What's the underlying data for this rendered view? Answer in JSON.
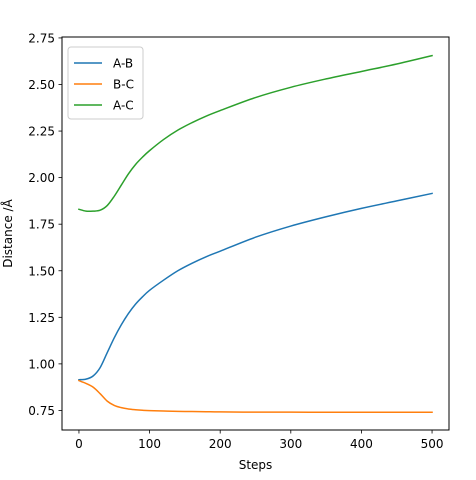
{
  "chart_data": {
    "type": "line",
    "title": "",
    "xlabel": "Steps",
    "ylabel": "Distance /Å",
    "xlim": [
      -24,
      524
    ],
    "ylim": [
      0.645,
      2.755
    ],
    "xticks": [
      0,
      100,
      200,
      300,
      400,
      500
    ],
    "xtick_labels": [
      "0",
      "100",
      "200",
      "300",
      "400",
      "500"
    ],
    "yticks": [
      0.75,
      1.0,
      1.25,
      1.5,
      1.75,
      2.0,
      2.25,
      2.5,
      2.75
    ],
    "ytick_labels": [
      "0.75",
      "1.00",
      "1.25",
      "1.50",
      "1.75",
      "2.00",
      "2.25",
      "2.50",
      "2.75"
    ],
    "grid": false,
    "legend": "top-left",
    "x": [
      0,
      10,
      20,
      30,
      40,
      50,
      60,
      70,
      80,
      90,
      100,
      120,
      140,
      160,
      180,
      200,
      250,
      300,
      350,
      400,
      450,
      500
    ],
    "series": [
      {
        "name": "A-B",
        "color": "#1f77b4",
        "values": [
          0.915,
          0.918,
          0.935,
          0.98,
          1.06,
          1.14,
          1.21,
          1.27,
          1.32,
          1.36,
          1.395,
          1.45,
          1.5,
          1.54,
          1.575,
          1.605,
          1.68,
          1.74,
          1.79,
          1.835,
          1.875,
          1.915
        ]
      },
      {
        "name": "B-C",
        "color": "#ff7f0e",
        "values": [
          0.91,
          0.895,
          0.875,
          0.84,
          0.8,
          0.777,
          0.765,
          0.758,
          0.754,
          0.751,
          0.749,
          0.747,
          0.745,
          0.744,
          0.743,
          0.742,
          0.741,
          0.741,
          0.74,
          0.74,
          0.74,
          0.74
        ]
      },
      {
        "name": "A-C",
        "color": "#2ca02c",
        "values": [
          1.83,
          1.82,
          1.82,
          1.825,
          1.85,
          1.9,
          1.96,
          2.02,
          2.07,
          2.11,
          2.145,
          2.205,
          2.255,
          2.295,
          2.33,
          2.36,
          2.43,
          2.485,
          2.53,
          2.57,
          2.61,
          2.655
        ]
      }
    ]
  }
}
